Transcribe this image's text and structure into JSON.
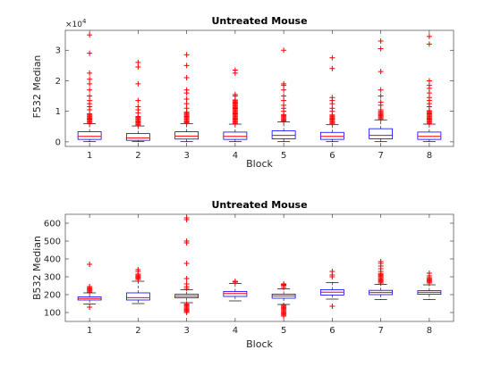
{
  "chart_data": [
    {
      "type": "boxplot",
      "title": "Untreated Mouse",
      "xlabel": "Block",
      "ylabel": "F532 Median",
      "y_multiplier_label": "×10",
      "y_multiplier_exponent": "4",
      "categories": [
        "1",
        "2",
        "3",
        "4",
        "5",
        "6",
        "7",
        "8"
      ],
      "y_ticks": [
        0,
        10000,
        20000,
        30000
      ],
      "y_tick_labels": [
        "0",
        "1",
        "2",
        "3"
      ],
      "ylim": [
        -1500,
        36500
      ],
      "box_color": "#0000ff",
      "median_color": "#ff0000",
      "outlier_color": "#ff0000",
      "whisker_color": "#000000",
      "boxes": [
        {
          "q1": 800,
          "median": 1800,
          "q3": 3300,
          "whisker_low": 50,
          "whisker_high": 5900,
          "outliers_dense": [
            6000,
            9500
          ],
          "outliers": [
            10500,
            11500,
            12500,
            13500,
            15000,
            17000,
            19000,
            20500,
            22500,
            29000,
            35000
          ]
        },
        {
          "q1": 500,
          "median": 1300,
          "q3": 2700,
          "whisker_low": 50,
          "whisker_high": 5200,
          "outliers_dense": [
            5500,
            8500
          ],
          "outliers": [
            9500,
            10500,
            11500,
            13500,
            19000,
            24500,
            26000
          ]
        },
        {
          "q1": 900,
          "median": 1900,
          "q3": 3300,
          "whisker_low": 50,
          "whisker_high": 6000,
          "outliers_dense": [
            6200,
            10000
          ],
          "outliers": [
            11000,
            12500,
            14000,
            16000,
            17000,
            21000,
            25000,
            28500
          ]
        },
        {
          "q1": 800,
          "median": 1800,
          "q3": 3200,
          "whisker_low": 50,
          "whisker_high": 5800,
          "outliers_dense": [
            6000,
            14000
          ],
          "outliers": [
            15000,
            15500,
            22500,
            23500
          ]
        },
        {
          "q1": 1000,
          "median": 2100,
          "q3": 3600,
          "whisker_low": 50,
          "whisker_high": 6500,
          "outliers_dense": [
            6800,
            9000
          ],
          "outliers": [
            10000,
            11000,
            12000,
            13500,
            15000,
            17000,
            18500,
            19000,
            30000
          ]
        },
        {
          "q1": 800,
          "median": 1800,
          "q3": 3100,
          "whisker_low": 50,
          "whisker_high": 5600,
          "outliers_dense": [
            6000,
            9000
          ],
          "outliers": [
            10000,
            11000,
            12500,
            13500,
            14500,
            24000,
            27500
          ]
        },
        {
          "q1": 1000,
          "median": 2100,
          "q3": 4300,
          "whisker_low": 50,
          "whisker_high": 7200,
          "outliers_dense": [
            7500,
            10000
          ],
          "outliers": [
            10500,
            12000,
            13000,
            15000,
            17000,
            23000,
            30500,
            33000
          ]
        },
        {
          "q1": 800,
          "median": 1800,
          "q3": 3200,
          "whisker_low": 50,
          "whisker_high": 5800,
          "outliers_dense": [
            6000,
            10500
          ],
          "outliers": [
            11500,
            12500,
            13500,
            14500,
            16000,
            17500,
            18500,
            20000,
            32000,
            34500
          ]
        }
      ]
    },
    {
      "type": "boxplot",
      "title": "Untreated Mouse",
      "xlabel": "Block",
      "ylabel": "B532 Median",
      "categories": [
        "1",
        "2",
        "3",
        "4",
        "5",
        "6",
        "7",
        "8"
      ],
      "y_ticks": [
        100,
        200,
        300,
        400,
        500,
        600
      ],
      "y_tick_labels": [
        "100",
        "200",
        "300",
        "400",
        "500",
        "600"
      ],
      "ylim": [
        50,
        650
      ],
      "box_color": "#0000ff",
      "median_color": "#ff0000",
      "outlier_color": "#ff0000",
      "whisker_color": "#000000",
      "boxes": [
        {
          "q1": 170,
          "median": 179,
          "q3": 187,
          "whisker_low": 147,
          "whisker_high": 210,
          "outliers_dense": [
            215,
            245
          ],
          "outliers": [
            130,
            370
          ]
        },
        {
          "q1": 170,
          "median": 183,
          "q3": 210,
          "whisker_low": 150,
          "whisker_high": 275,
          "outliers_dense": [
            285,
            320
          ],
          "outliers": [
            330,
            340
          ]
        },
        {
          "q1": 182,
          "median": 192,
          "q3": 202,
          "whisker_low": 155,
          "whisker_high": 228,
          "outliers_dense": [
            100,
            150
          ],
          "outliers": [
            235,
            245,
            260,
            290,
            375,
            490,
            500,
            620,
            630
          ]
        },
        {
          "q1": 190,
          "median": 206,
          "q3": 218,
          "whisker_low": 165,
          "whisker_high": 262,
          "outliers_dense": [],
          "outliers": [
            270,
            275
          ]
        },
        {
          "q1": 180,
          "median": 193,
          "q3": 203,
          "whisker_low": 145,
          "whisker_high": 232,
          "outliers_dense": [
            80,
            140
          ],
          "outliers": [
            240,
            250,
            255,
            260
          ]
        },
        {
          "q1": 198,
          "median": 214,
          "q3": 228,
          "whisker_low": 175,
          "whisker_high": 268,
          "outliers_dense": [],
          "outliers": [
            135,
            300,
            310,
            330
          ]
        },
        {
          "q1": 200,
          "median": 212,
          "q3": 224,
          "whisker_low": 172,
          "whisker_high": 257,
          "outliers_dense": [
            265,
            320
          ],
          "outliers": [
            330,
            345,
            360,
            375,
            385
          ]
        },
        {
          "q1": 202,
          "median": 213,
          "q3": 222,
          "whisker_low": 172,
          "whisker_high": 255,
          "outliers_dense": [
            265,
            295
          ],
          "outliers": [
            305,
            320
          ]
        }
      ]
    }
  ]
}
